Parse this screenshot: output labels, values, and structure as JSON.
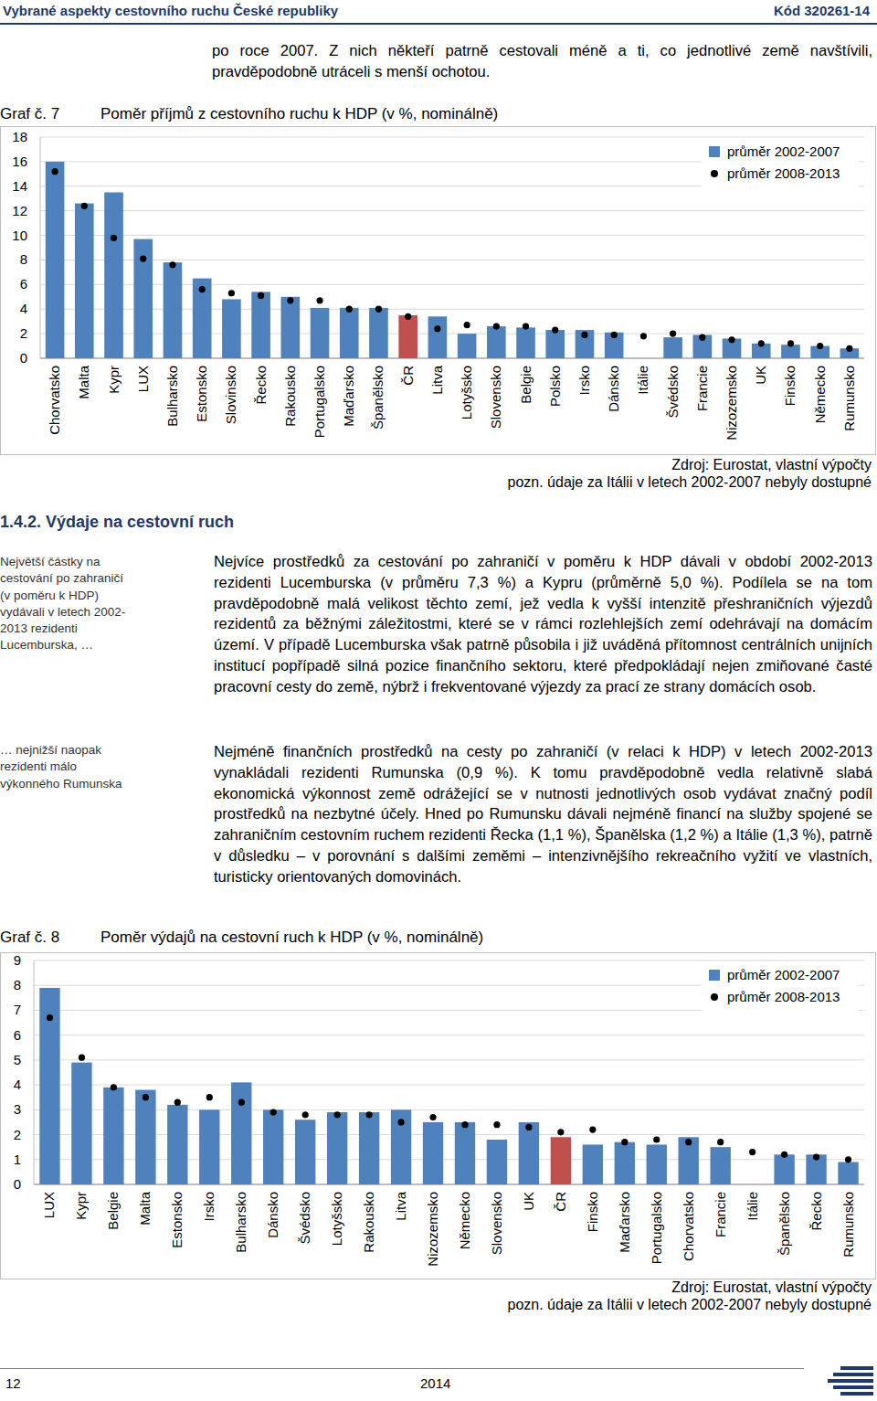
{
  "page": {
    "header": {
      "title": "Vybrané aspekty cestovního ruchu České republiky",
      "code": "Kód 320261-14"
    },
    "intro": "po roce 2007. Z nich někteří patrně cestovali méně a ti, co jednotlivé země navštívili, pravděpodobně utráceli s menší ochotou.",
    "section": "1.4.2. Výdaje na cestovní ruch",
    "sidebar": [
      "Největší částky na cestování po zahraničí (v poměru k HDP) vydávali v letech 2002-2013 rezidenti Lucemburska, …",
      "… nejnižší naopak rezidenti málo výkonného Rumunska"
    ],
    "paragraphs": [
      "Nejvíce prostředků za cestování po zahraničí v poměru k HDP dávali v období 2002-2013 rezidenti Lucemburska (v průměru 7,3 %) a Kypru (průměrně 5,0 %). Podílela se na tom pravděpodobně malá velikost těchto zemí, jež vedla k vyšší intenzitě přeshraničních výjezdů rezidentů za běžnými záležitostmi, které se v rámci rozlehlejších zemí odehrávají na domácím území. V případě Lucemburska však patrně působila i již uváděná přítomnost centrálních unijních institucí popřípadě silná pozice finančního sektoru, které předpokládají nejen zmiňované časté pracovní cesty do země, nýbrž i frekventované výjezdy za prací ze strany domácích osob.",
      "Nejméně finančních prostředků na cesty po zahraničí (v relaci k HDP) v letech 2002-2013 vynakládali rezidenti Rumunska (0,9 %). K tomu pravděpodobně vedla relativně slabá ekonomická výkonnost země odrážející se v nutnosti jednotlivých osob vydávat značný podíl prostředků na nezbytné účely. Hned po Rumunsku dávali nejméně financí na služby spojené se zahraničním cestovním ruchem rezidenti Řecka (1,1 %), Španělska (1,2 %) a Itálie (1,3 %), patrně v důsledku – v porovnání s dalšími zeměmi – intenzivnějšího rekreačního vyžití ve vlastních, turisticky orientovaných domovinách."
    ],
    "footer": {
      "page": "12",
      "year": "2014"
    }
  },
  "chart_data": [
    {
      "type": "bar",
      "label": "Graf č. 7",
      "title": "Poměr příjmů z cestovního ruchu k HDP (v %, nominálně)",
      "source": "Zdroj: Eurostat, vlastní výpočty",
      "note": "pozn. údaje za Itálii v letech 2002-2007 nebyly dostupné",
      "categories": [
        "Chorvatsko",
        "Malta",
        "Kypr",
        "LUX",
        "Bulharsko",
        "Estonsko",
        "Slovinsko",
        "Řecko",
        "Rakousko",
        "Portugalsko",
        "Maďarsko",
        "Španělsko",
        "ČR",
        "Litva",
        "Lotyšsko",
        "Slovensko",
        "Belgie",
        "Polsko",
        "Irsko",
        "Dánsko",
        "Itálie",
        "Švédsko",
        "Francie",
        "Nizozemsko",
        "UK",
        "Finsko",
        "Německo",
        "Rumunsko"
      ],
      "series": [
        {
          "name": "průměr 2002-2007",
          "type": "bar",
          "color": "#4f81bd",
          "colors": [
            "#4f81bd",
            "#4f81bd",
            "#4f81bd",
            "#4f81bd",
            "#4f81bd",
            "#4f81bd",
            "#4f81bd",
            "#4f81bd",
            "#4f81bd",
            "#4f81bd",
            "#4f81bd",
            "#4f81bd",
            "#c0504d",
            "#4f81bd",
            "#4f81bd",
            "#4f81bd",
            "#4f81bd",
            "#4f81bd",
            "#4f81bd",
            "#4f81bd",
            "#4f81bd",
            "#4f81bd",
            "#4f81bd",
            "#4f81bd",
            "#4f81bd",
            "#4f81bd",
            "#4f81bd",
            "#4f81bd"
          ],
          "values": [
            16.0,
            12.6,
            13.5,
            9.7,
            7.8,
            6.5,
            4.8,
            5.4,
            5.0,
            4.1,
            4.1,
            4.1,
            3.5,
            3.4,
            2.0,
            2.6,
            2.5,
            2.3,
            2.3,
            2.1,
            null,
            1.7,
            1.9,
            1.6,
            1.2,
            1.1,
            1.0,
            0.8
          ]
        },
        {
          "name": "průměr 2008-2013",
          "type": "scatter",
          "color": "#000000",
          "marker": "circle",
          "values": [
            15.2,
            12.4,
            9.8,
            8.1,
            7.6,
            5.6,
            5.3,
            5.1,
            4.7,
            4.7,
            4.0,
            4.0,
            3.4,
            2.4,
            2.7,
            2.6,
            2.6,
            2.3,
            1.9,
            1.9,
            1.8,
            2.0,
            1.7,
            1.5,
            1.2,
            1.2,
            1.0,
            0.8
          ]
        }
      ],
      "ylim": [
        0,
        18
      ],
      "yticks": [
        0,
        2,
        4,
        6,
        8,
        10,
        12,
        14,
        16,
        18
      ],
      "grid": true,
      "legend": "top-right"
    },
    {
      "type": "bar",
      "label": "Graf č. 8",
      "title": "Poměr výdajů na cestovní ruch k HDP (v %, nominálně)",
      "source": "Zdroj: Eurostat, vlastní výpočty",
      "note": "pozn. údaje za Itálii v letech 2002-2007 nebyly dostupné",
      "categories": [
        "LUX",
        "Kypr",
        "Belgie",
        "Malta",
        "Estonsko",
        "Irsko",
        "Bulharsko",
        "Dánsko",
        "Švédsko",
        "Lotyšsko",
        "Rakousko",
        "Litva",
        "Nizozemsko",
        "Německo",
        "Slovensko",
        "UK",
        "ČR",
        "Finsko",
        "Maďarsko",
        "Portugalsko",
        "Chorvatsko",
        "Francie",
        "Itálie",
        "Španělsko",
        "Řecko",
        "Rumunsko"
      ],
      "series": [
        {
          "name": "průměr 2002-2007",
          "type": "bar",
          "color": "#4f81bd",
          "colors": [
            "#4f81bd",
            "#4f81bd",
            "#4f81bd",
            "#4f81bd",
            "#4f81bd",
            "#4f81bd",
            "#4f81bd",
            "#4f81bd",
            "#4f81bd",
            "#4f81bd",
            "#4f81bd",
            "#4f81bd",
            "#4f81bd",
            "#4f81bd",
            "#4f81bd",
            "#4f81bd",
            "#c0504d",
            "#4f81bd",
            "#4f81bd",
            "#4f81bd",
            "#4f81bd",
            "#4f81bd",
            "#4f81bd",
            "#4f81bd",
            "#4f81bd",
            "#4f81bd"
          ],
          "values": [
            7.9,
            4.9,
            3.9,
            3.8,
            3.2,
            3.0,
            4.1,
            3.0,
            2.6,
            2.9,
            2.9,
            3.0,
            2.5,
            2.5,
            1.8,
            2.5,
            1.9,
            1.6,
            1.7,
            1.6,
            1.9,
            1.5,
            null,
            1.2,
            1.2,
            0.9
          ]
        },
        {
          "name": "průměr 2008-2013",
          "type": "scatter",
          "color": "#000000",
          "marker": "circle",
          "values": [
            6.7,
            5.1,
            3.9,
            3.5,
            3.3,
            3.5,
            3.3,
            2.9,
            2.8,
            2.8,
            2.8,
            2.5,
            2.7,
            2.4,
            2.4,
            2.3,
            2.1,
            2.2,
            1.7,
            1.8,
            1.7,
            1.7,
            1.3,
            1.2,
            1.1,
            1.0
          ]
        }
      ],
      "ylim": [
        0,
        9
      ],
      "yticks": [
        0,
        1,
        2,
        3,
        4,
        5,
        6,
        7,
        8,
        9
      ],
      "grid": true,
      "legend": "top-right"
    }
  ]
}
